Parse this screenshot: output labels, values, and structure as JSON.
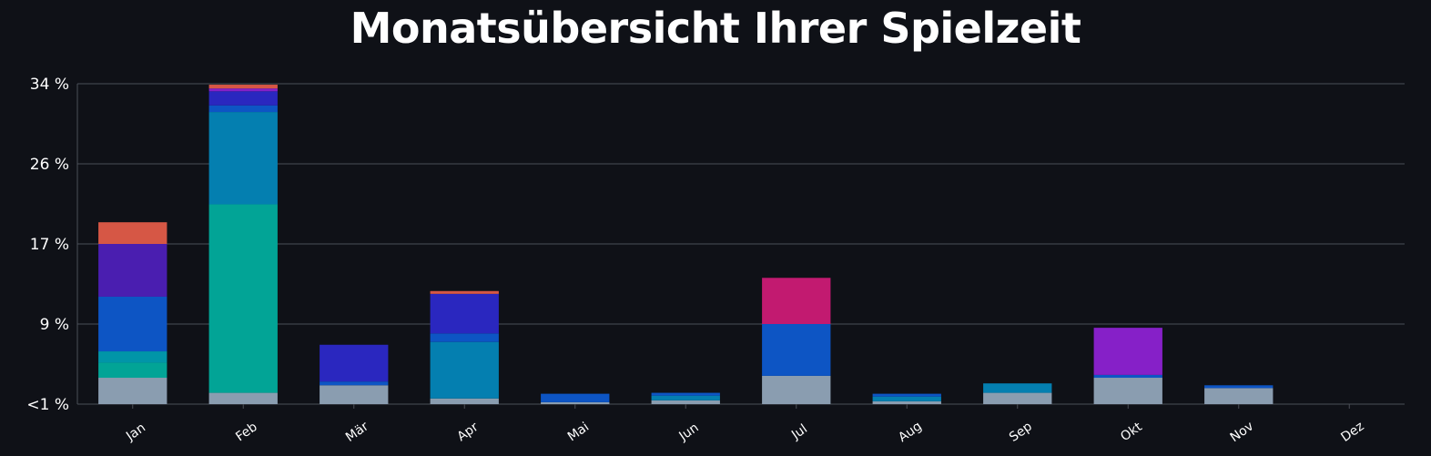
{
  "chart_data": {
    "type": "bar",
    "stacked": true,
    "title": "Monatsübersicht Ihrer Spielzeit",
    "xlabel": "",
    "ylabel": "",
    "categories": [
      "Jan",
      "Feb",
      "Mär",
      "Apr",
      "Mai",
      "Jun",
      "Jul",
      "Aug",
      "Sep",
      "Okt",
      "Nov",
      "Dez"
    ],
    "y_ticks": [
      "<1 %",
      "9 %",
      "17 %",
      "26 %",
      "34 %"
    ],
    "ylim": [
      0,
      34
    ],
    "grid": true,
    "series": [
      {
        "color": "#8a9db0",
        "values": [
          2.8,
          1.2,
          2.0,
          0.6,
          0.2,
          0.4,
          3.0,
          0.3,
          1.2,
          2.8,
          1.7,
          0
        ]
      },
      {
        "color": "#02a496",
        "values": [
          1.6,
          20.0,
          0.0,
          0.0,
          0.0,
          0.0,
          0.0,
          0.0,
          0.0,
          0.0,
          0.0,
          0
        ]
      },
      {
        "color": "#0195a8",
        "values": [
          1.2,
          0.0,
          0.0,
          0.0,
          0.0,
          0.0,
          0.0,
          0.0,
          0.0,
          0.0,
          0.0,
          0
        ]
      },
      {
        "color": "#047fb0",
        "values": [
          0.0,
          9.8,
          0.0,
          6.0,
          0.0,
          0.5,
          0.0,
          0.5,
          1.0,
          0.0,
          0.0,
          0
        ]
      },
      {
        "color": "#0d55c4",
        "values": [
          5.8,
          0.7,
          0.4,
          0.9,
          0.9,
          0.3,
          5.5,
          0.3,
          0.0,
          0.3,
          0.3,
          0
        ]
      },
      {
        "color": "#2a27bf",
        "values": [
          0.0,
          1.5,
          3.9,
          4.2,
          0.0,
          0.0,
          0.0,
          0.0,
          0.0,
          0.0,
          0.0,
          0
        ]
      },
      {
        "color": "#4a1eb0",
        "values": [
          5.6,
          0.0,
          0.0,
          0.0,
          0.0,
          0.0,
          0.0,
          0.0,
          0.0,
          0.0,
          0.0,
          0
        ]
      },
      {
        "color": "#8620c8",
        "values": [
          0.0,
          0.3,
          0.0,
          0.0,
          0.0,
          0.0,
          0.0,
          0.0,
          0.0,
          5.0,
          0.0,
          0
        ]
      },
      {
        "color": "#c21a70",
        "values": [
          0.0,
          0.0,
          0.0,
          0.0,
          0.0,
          0.0,
          4.9,
          0.0,
          0.0,
          0.0,
          0.0,
          0
        ]
      },
      {
        "color": "#d65745",
        "values": [
          2.3,
          0.4,
          0.0,
          0.3,
          0.0,
          0.0,
          0.0,
          0.0,
          0.0,
          0.0,
          0.0,
          0
        ]
      }
    ]
  },
  "colors": {
    "background": "#0f1117",
    "grid": "#4a4e57",
    "text": "#ffffff"
  }
}
